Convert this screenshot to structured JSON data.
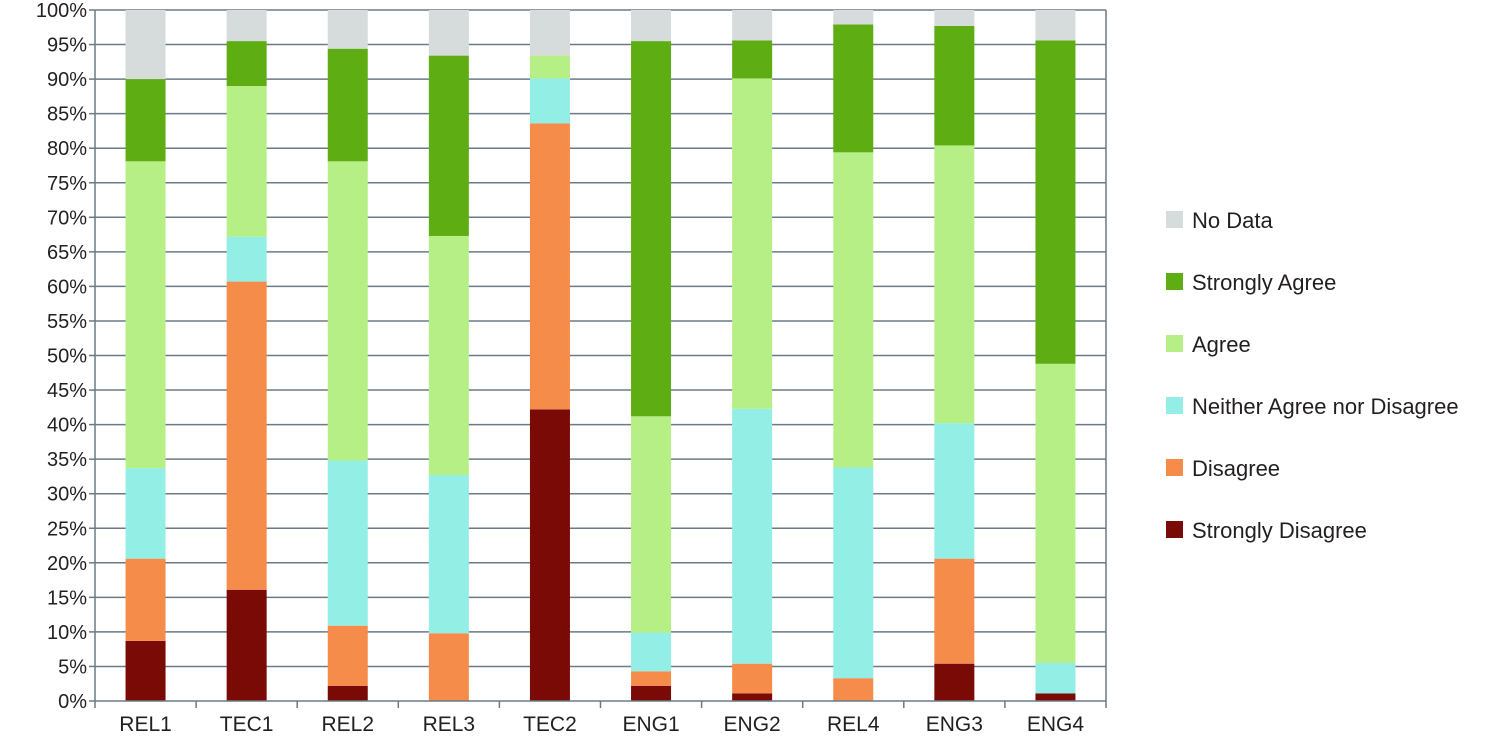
{
  "chart_data": {
    "type": "bar",
    "stacked": true,
    "categories": [
      "REL1",
      "TEC1",
      "REL2",
      "REL3",
      "TEC2",
      "ENG1",
      "ENG2",
      "REL4",
      "ENG3",
      "ENG4"
    ],
    "ylim": [
      0,
      100
    ],
    "yticks": [
      "0%",
      "5%",
      "10%",
      "15%",
      "20%",
      "25%",
      "30%",
      "35%",
      "40%",
      "45%",
      "50%",
      "55%",
      "60%",
      "65%",
      "70%",
      "75%",
      "80%",
      "85%",
      "90%",
      "95%",
      "100%"
    ],
    "grid": true,
    "legend_position": "right",
    "series": [
      {
        "name": "Strongly Disagree",
        "color": "#7a0a05",
        "values": [
          8.7,
          16.1,
          2.2,
          0,
          42.2,
          2.2,
          1.1,
          0,
          5.4,
          1.1
        ]
      },
      {
        "name": "Disagree",
        "color": "#f58c4a",
        "values": [
          11.9,
          44.6,
          8.7,
          9.8,
          41.4,
          2.1,
          4.3,
          3.3,
          15.2,
          0
        ]
      },
      {
        "name": "Neither Agree nor Disagree",
        "color": "#93eee6",
        "values": [
          13.1,
          6.5,
          23.9,
          22.9,
          6.5,
          5.6,
          36.9,
          30.5,
          19.6,
          4.4
        ]
      },
      {
        "name": "Agree",
        "color": "#b7ef87",
        "values": [
          44.4,
          21.8,
          43.3,
          34.6,
          3.3,
          31.3,
          47.8,
          45.6,
          40.2,
          43.3
        ]
      },
      {
        "name": "Strongly Agree",
        "color": "#5ead13",
        "values": [
          11.9,
          6.5,
          16.3,
          26.1,
          0,
          54.3,
          5.5,
          18.5,
          17.3,
          46.8
        ]
      },
      {
        "name": "No Data",
        "color": "#d5dcdb",
        "values": [
          10.0,
          4.5,
          5.6,
          6.6,
          6.6,
          4.5,
          4.4,
          2.1,
          2.3,
          4.4
        ]
      }
    ],
    "legend_order": [
      "No Data",
      "Strongly Agree",
      "Agree",
      "Neither Agree nor Disagree",
      "Disagree",
      "Strongly Disagree"
    ]
  }
}
